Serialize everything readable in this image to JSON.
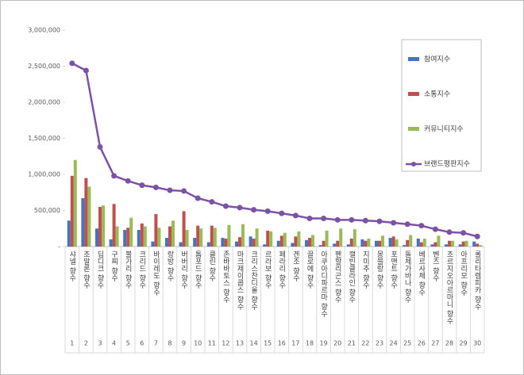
{
  "chart_data": {
    "type": "bar",
    "categories": [
      "샤넬 향수",
      "조말론 향수",
      "딥디크 향수",
      "구찌 향수",
      "불가리 향수",
      "크리드 향수",
      "바이레도 향수",
      "랑방 향수",
      "버버리 향수",
      "톰포드 향수",
      "클린 향수",
      "존바바토스 향수",
      "마크제이콥스 향수",
      "크리스찬디올 향수",
      "르라보 향수",
      "페라리 향수",
      "겐조 향수",
      "끌로에 향수",
      "아쿠아디파르마 향수",
      "펜할리곤스 향수",
      "캘빈클라인 향수",
      "지미추 향수",
      "몽블랑 향수",
      "포맨트 향수",
      "돌체가바나 향수",
      "베르사체 향수",
      "벤츠 향수",
      "조르지오아르마니 향수",
      "아프리모 향수",
      "롤리타렘피카 향수"
    ],
    "ranks": [
      1,
      2,
      3,
      4,
      5,
      6,
      7,
      8,
      9,
      10,
      11,
      12,
      13,
      14,
      15,
      16,
      17,
      18,
      19,
      20,
      21,
      22,
      23,
      24,
      25,
      26,
      27,
      28,
      29,
      30
    ],
    "series": [
      {
        "name": "참여지수",
        "type": "bar",
        "color": "#4472c4",
        "values": [
          360000,
          670000,
          250000,
          100000,
          230000,
          230000,
          70000,
          120000,
          60000,
          120000,
          60000,
          120000,
          70000,
          140000,
          30000,
          80000,
          50000,
          90000,
          20000,
          40000,
          30000,
          100000,
          80000,
          120000,
          20000,
          110000,
          30000,
          30000,
          30000,
          70000
        ]
      },
      {
        "name": "소통지수",
        "type": "bar",
        "color": "#c0504d",
        "values": [
          980000,
          950000,
          550000,
          590000,
          260000,
          320000,
          450000,
          280000,
          490000,
          290000,
          290000,
          110000,
          130000,
          110000,
          220000,
          150000,
          140000,
          120000,
          80000,
          80000,
          110000,
          80000,
          80000,
          140000,
          90000,
          60000,
          60000,
          80000,
          70000,
          40000
        ]
      },
      {
        "name": "커뮤니티지수",
        "type": "bar",
        "color": "#9bbb59",
        "values": [
          1200000,
          830000,
          570000,
          280000,
          400000,
          280000,
          260000,
          360000,
          230000,
          250000,
          260000,
          300000,
          310000,
          250000,
          210000,
          190000,
          210000,
          160000,
          220000,
          250000,
          240000,
          110000,
          150000,
          100000,
          160000,
          110000,
          150000,
          80000,
          80000,
          20000
        ]
      },
      {
        "name": "브랜드평판지수",
        "type": "line",
        "color": "#7b52a6",
        "values": [
          2540000,
          2440000,
          1380000,
          980000,
          910000,
          850000,
          820000,
          780000,
          770000,
          670000,
          620000,
          560000,
          540000,
          510000,
          490000,
          460000,
          430000,
          390000,
          390000,
          370000,
          370000,
          360000,
          350000,
          330000,
          310000,
          290000,
          240000,
          200000,
          190000,
          140000
        ]
      }
    ],
    "ylim": [
      0,
      3000000
    ],
    "yticks": [
      {
        "value": 0,
        "label": "-"
      },
      {
        "value": 500000,
        "label": "500,000"
      },
      {
        "value": 1000000,
        "label": "1,000,000"
      },
      {
        "value": 1500000,
        "label": "1,500,000"
      },
      {
        "value": 2000000,
        "label": "2,000,000"
      },
      {
        "value": 2500000,
        "label": "2,500,000"
      },
      {
        "value": 3000000,
        "label": "3,000,000"
      }
    ],
    "grid": false
  }
}
